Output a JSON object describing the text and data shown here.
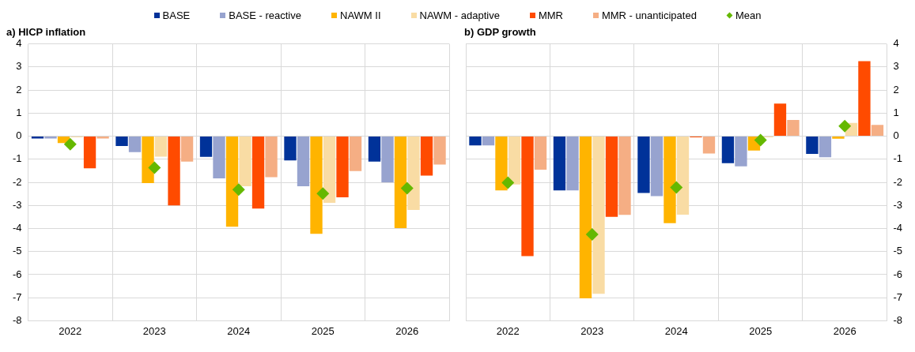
{
  "chart_data": [
    {
      "type": "bar",
      "title": "a) HICP inflation",
      "categories": [
        "2022",
        "2023",
        "2024",
        "2025",
        "2026"
      ],
      "ylim": [
        -8,
        4
      ],
      "yticks": [
        -8,
        -7,
        -6,
        -5,
        -4,
        -3,
        -2,
        -1,
        0,
        1,
        2,
        3,
        4
      ],
      "grid": true,
      "legend": "top",
      "series": [
        {
          "name": "BASE",
          "color": "#003299",
          "values": [
            -0.1,
            -0.43,
            -0.9,
            -1.05,
            -1.1
          ]
        },
        {
          "name": "BASE - reactive",
          "color": "#97a3cf",
          "values": [
            -0.1,
            -0.69,
            -1.83,
            -2.17,
            -2.0
          ]
        },
        {
          "name": "NAWM II",
          "color": "#ffb400",
          "values": [
            -0.3,
            -2.03,
            -3.92,
            -4.23,
            -3.98
          ]
        },
        {
          "name": "NAWM - adaptive",
          "color": "#f9dca4",
          "values": [
            -0.05,
            -0.89,
            -2.17,
            -2.89,
            -3.2
          ]
        },
        {
          "name": "MMR",
          "color": "#ff4b00",
          "values": [
            -1.39,
            -3.0,
            -3.14,
            -2.65,
            -1.71
          ]
        },
        {
          "name": "MMR - unanticipated",
          "color": "#f5ae84",
          "values": [
            -0.1,
            -1.1,
            -1.78,
            -1.51,
            -1.23
          ]
        },
        {
          "name": "Mean",
          "type": "scatter",
          "marker": "diamond",
          "color": "#65b800",
          "values": [
            -0.35,
            -1.37,
            -2.32,
            -2.49,
            -2.26
          ]
        }
      ]
    },
    {
      "type": "bar",
      "title": "b) GDP growth",
      "categories": [
        "2022",
        "2023",
        "2024",
        "2025",
        "2026"
      ],
      "ylim": [
        -8,
        4
      ],
      "yticks": [
        -8,
        -7,
        -6,
        -5,
        -4,
        -3,
        -2,
        -1,
        0,
        1,
        2,
        3,
        4
      ],
      "grid": true,
      "series": [
        {
          "color": "#003299",
          "values": [
            -0.4,
            -2.35,
            -2.46,
            -1.17,
            -0.77
          ]
        },
        {
          "color": "#97a3cf",
          "values": [
            -0.4,
            -2.35,
            -2.6,
            -1.31,
            -0.91
          ]
        },
        {
          "color": "#ffb400",
          "values": [
            -2.35,
            -7.03,
            -3.77,
            -0.62,
            -0.11
          ]
        },
        {
          "color": "#f9dca4",
          "values": [
            -2.09,
            -6.83,
            -3.4,
            -0.05,
            0.57
          ]
        },
        {
          "color": "#ff4b00",
          "values": [
            -5.2,
            -3.5,
            -0.05,
            1.41,
            3.25
          ]
        },
        {
          "color": "#f5ae84",
          "values": [
            -1.45,
            -3.41,
            -0.75,
            0.7,
            0.49
          ]
        },
        {
          "type": "scatter",
          "marker": "diamond",
          "color": "#65b800",
          "values": [
            -2.02,
            -4.26,
            -2.22,
            -0.17,
            0.44
          ]
        }
      ]
    }
  ]
}
